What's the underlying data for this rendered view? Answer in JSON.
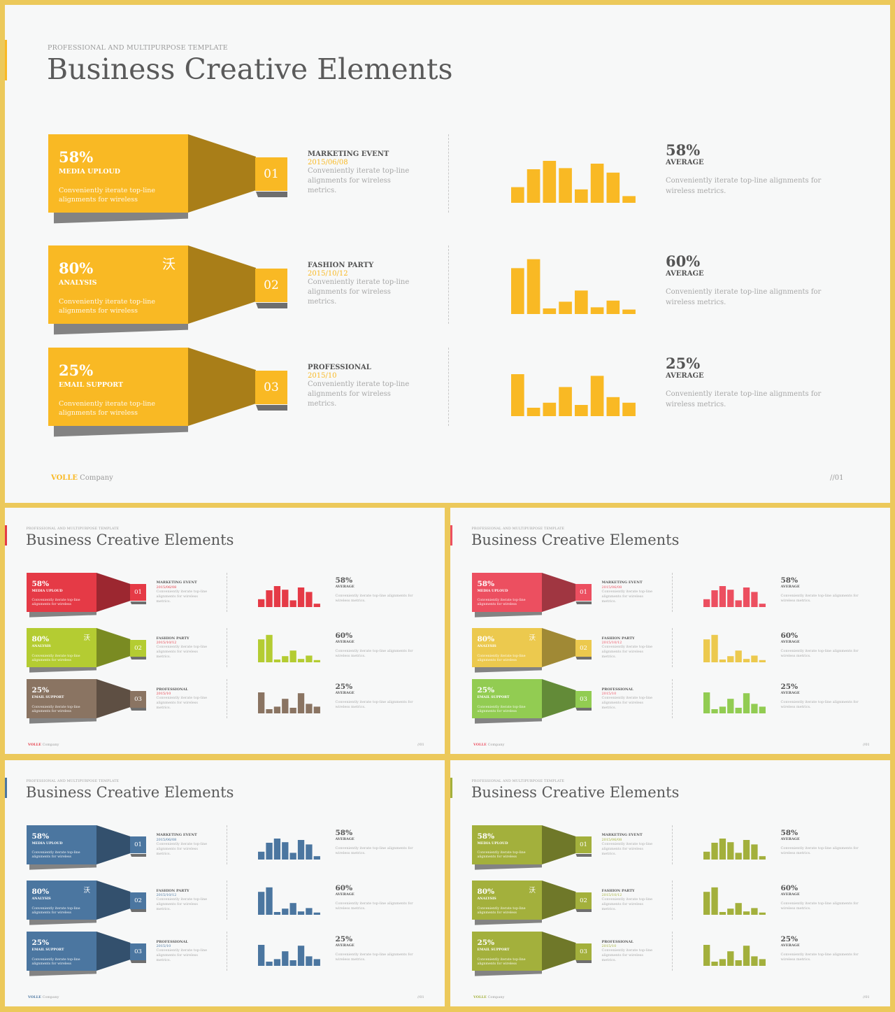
{
  "pretitle": "PROFESSIONAL AND MULTIPURPOSE  TEMPLATE",
  "title": "Business Creative Elements",
  "footer_brand": "VOLLE",
  "footer_company": "Company",
  "page_number": "//01",
  "items": [
    {
      "num": "01",
      "pct": "58%",
      "label": "MEDIA UPLOUD",
      "desc": "Conveniently iterate top-line alignments for wireless",
      "glyph": "",
      "event_title": "MARKETING EVENT",
      "event_date": "2015/06/08",
      "event_desc": "Conveniently iterate top-line alignments for wireless metrics.",
      "stat_pct": "58%",
      "stat_label": "AVERAGE",
      "stat_desc": "Conveniently iterate top-line alignments for wireless metrics."
    },
    {
      "num": "02",
      "pct": "80%",
      "label": "ANALYSIS",
      "desc": "Conveniently iterate top-line alignments for wireless",
      "glyph": "沃",
      "event_title": "FASHION PARTY",
      "event_date": "2015/10/12",
      "event_desc": "Conveniently iterate top-line alignments for wireless metrics.",
      "stat_pct": "60%",
      "stat_label": "AVERAGE",
      "stat_desc": "Conveniently iterate top-line alignments for wireless metrics."
    },
    {
      "num": "03",
      "pct": "25%",
      "label": "EMAIL SUPPORT",
      "desc": "Conveniently iterate top-line alignments for wireless",
      "glyph": "",
      "event_title": "PROFESSIONAL",
      "event_date": "2015/10",
      "event_desc": "Conveniently iterate top-line alignments for wireless metrics.",
      "stat_pct": "25%",
      "stat_label": "AVERAGE",
      "stat_desc": "Conveniently iterate top-line alignments for wireless metrics."
    }
  ],
  "chart_data": [
    {
      "type": "bar",
      "series": [
        {
          "values": [
            28,
            60,
            75,
            62,
            24,
            70,
            54,
            12
          ]
        }
      ],
      "ylim": [
        0,
        100
      ]
    },
    {
      "type": "bar",
      "series": [
        {
          "values": [
            82,
            98,
            10,
            22,
            42,
            12,
            24,
            8
          ]
        }
      ],
      "ylim": [
        0,
        100
      ]
    },
    {
      "type": "bar",
      "series": [
        {
          "values": [
            75,
            15,
            24,
            52,
            20,
            72,
            34,
            24
          ]
        }
      ],
      "ylim": [
        0,
        100
      ]
    }
  ],
  "themes": [
    {
      "name": "yellow",
      "accent": "#f9b924",
      "colors": [
        "#f9b924",
        "#f9b924",
        "#f9b924"
      ],
      "bar": "#f9b924"
    },
    {
      "name": "multi-1",
      "accent": "#e53a46",
      "colors": [
        "#e53a46",
        "#b4cc32",
        "#8a7462"
      ],
      "bar": [
        "#e53a46",
        "#b4cc32",
        "#8a7462"
      ]
    },
    {
      "name": "multi-2",
      "accent": "#ec4f60",
      "colors": [
        "#ec4f60",
        "#ecc94e",
        "#92cc52"
      ],
      "bar": [
        "#ec4f60",
        "#ecc94e",
        "#92cc52"
      ]
    },
    {
      "name": "blue",
      "accent": "#4b76a0",
      "colors": [
        "#4b76a0",
        "#4b76a0",
        "#4b76a0"
      ],
      "bar": "#4b76a0"
    },
    {
      "name": "olive",
      "accent": "#a3b03c",
      "colors": [
        "#a3b03c",
        "#a3b03c",
        "#a3b03c"
      ],
      "bar": "#a3b03c"
    }
  ]
}
